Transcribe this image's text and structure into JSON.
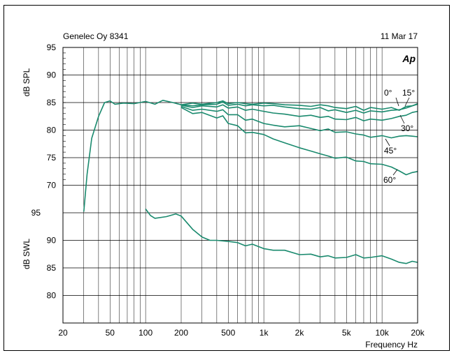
{
  "header": {
    "device": "Genelec Oy 8341",
    "date": "11 Mar 17",
    "logo": "Ap"
  },
  "chart_data": [
    {
      "type": "line",
      "name_axis": "dB SPL",
      "ylabel": "dB SPL",
      "xlabel": "Frequency Hz",
      "x_scale": "log",
      "xlim": [
        20,
        20000
      ],
      "ylim": [
        65,
        95
      ],
      "yticks": [
        70,
        75,
        80,
        85,
        90,
        95
      ],
      "color": "#1a8a6e",
      "series": [
        {
          "name": "0°",
          "points": [
            [
              30,
              65.2
            ],
            [
              32,
              72
            ],
            [
              35,
              78.5
            ],
            [
              40,
              82.5
            ],
            [
              45,
              85
            ],
            [
              50,
              85.3
            ],
            [
              55,
              84.7
            ],
            [
              65,
              84.9
            ],
            [
              80,
              84.8
            ],
            [
              100,
              85.2
            ],
            [
              120,
              84.7
            ],
            [
              140,
              85.4
            ],
            [
              170,
              85
            ],
            [
              200,
              84.6
            ],
            [
              250,
              84.9
            ],
            [
              300,
              84.7
            ],
            [
              400,
              85
            ],
            [
              450,
              85.3
            ],
            [
              500,
              84.8
            ],
            [
              600,
              85
            ],
            [
              700,
              84.8
            ],
            [
              800,
              84.7
            ],
            [
              1000,
              84.9
            ],
            [
              1200,
              84.8
            ],
            [
              1500,
              84.6
            ],
            [
              2000,
              84.5
            ],
            [
              2500,
              84.3
            ],
            [
              3000,
              84.6
            ],
            [
              3500,
              84.4
            ],
            [
              4000,
              84.1
            ],
            [
              5000,
              83.9
            ],
            [
              6000,
              84.3
            ],
            [
              7000,
              83.6
            ],
            [
              8000,
              84.1
            ],
            [
              10000,
              83.8
            ],
            [
              12000,
              84.1
            ],
            [
              14000,
              83.6
            ],
            [
              16000,
              84.3
            ],
            [
              18000,
              84.4
            ],
            [
              20000,
              84.8
            ]
          ]
        },
        {
          "name": "15°",
          "points": [
            [
              200,
              84.6
            ],
            [
              250,
              84.4
            ],
            [
              300,
              84.6
            ],
            [
              400,
              84.7
            ],
            [
              450,
              85.1
            ],
            [
              500,
              84.5
            ],
            [
              600,
              84.7
            ],
            [
              700,
              84.4
            ],
            [
              800,
              84.6
            ],
            [
              1000,
              84.4
            ],
            [
              1200,
              84.5
            ],
            [
              1500,
              84.2
            ],
            [
              2000,
              83.9
            ],
            [
              2500,
              83.8
            ],
            [
              3000,
              84.1
            ],
            [
              3500,
              83.5
            ],
            [
              4000,
              83.7
            ],
            [
              5000,
              83.2
            ],
            [
              6000,
              83.6
            ],
            [
              7000,
              83.1
            ],
            [
              8000,
              83.5
            ],
            [
              10000,
              83.3
            ],
            [
              12000,
              83.6
            ],
            [
              14000,
              83.7
            ],
            [
              16000,
              84
            ],
            [
              18000,
              84.4
            ],
            [
              20000,
              84.7
            ]
          ]
        },
        {
          "name": "30°",
          "points": [
            [
              200,
              84.5
            ],
            [
              250,
              84.1
            ],
            [
              300,
              84.4
            ],
            [
              400,
              84.2
            ],
            [
              450,
              84.6
            ],
            [
              500,
              84
            ],
            [
              600,
              84.2
            ],
            [
              700,
              83.6
            ],
            [
              800,
              83.8
            ],
            [
              1000,
              83.4
            ],
            [
              1200,
              83.1
            ],
            [
              1500,
              82.9
            ],
            [
              2000,
              82.5
            ],
            [
              2500,
              82.7
            ],
            [
              3000,
              82.3
            ],
            [
              3500,
              82.5
            ],
            [
              4000,
              82
            ],
            [
              5000,
              81.9
            ],
            [
              6000,
              82.3
            ],
            [
              7000,
              81.7
            ],
            [
              8000,
              82
            ],
            [
              10000,
              81.8
            ],
            [
              12000,
              82.1
            ],
            [
              14000,
              82.5
            ],
            [
              16000,
              82.7
            ],
            [
              18000,
              83.2
            ],
            [
              20000,
              83.4
            ]
          ]
        },
        {
          "name": "45°",
          "points": [
            [
              200,
              84.3
            ],
            [
              250,
              83.6
            ],
            [
              300,
              83.8
            ],
            [
              400,
              83.4
            ],
            [
              450,
              83.7
            ],
            [
              500,
              82.8
            ],
            [
              600,
              82.8
            ],
            [
              700,
              81.8
            ],
            [
              800,
              82
            ],
            [
              1000,
              81.2
            ],
            [
              1200,
              80.9
            ],
            [
              1500,
              80.6
            ],
            [
              2000,
              80.8
            ],
            [
              2500,
              80.3
            ],
            [
              3000,
              79.9
            ],
            [
              3500,
              80.2
            ],
            [
              4000,
              79.6
            ],
            [
              5000,
              79.7
            ],
            [
              6000,
              79.3
            ],
            [
              7000,
              79.1
            ],
            [
              8000,
              78.7
            ],
            [
              10000,
              79
            ],
            [
              12000,
              78.6
            ],
            [
              14000,
              78.9
            ],
            [
              16000,
              79
            ],
            [
              18000,
              78.9
            ],
            [
              20000,
              78.8
            ]
          ]
        },
        {
          "name": "60°",
          "points": [
            [
              200,
              84.1
            ],
            [
              250,
              83
            ],
            [
              300,
              83.2
            ],
            [
              400,
              82.2
            ],
            [
              450,
              82.6
            ],
            [
              500,
              81.2
            ],
            [
              600,
              80.8
            ],
            [
              700,
              79.5
            ],
            [
              800,
              79.6
            ],
            [
              1000,
              79.2
            ],
            [
              1200,
              78.4
            ],
            [
              1500,
              77.7
            ],
            [
              2000,
              76.8
            ],
            [
              2500,
              76.2
            ],
            [
              3000,
              75.7
            ],
            [
              3500,
              75.3
            ],
            [
              4000,
              74.9
            ],
            [
              5000,
              75.1
            ],
            [
              6000,
              74.4
            ],
            [
              7000,
              74.3
            ],
            [
              8000,
              73.9
            ],
            [
              10000,
              73.8
            ],
            [
              12000,
              73.3
            ],
            [
              14000,
              72.6
            ],
            [
              16000,
              71.9
            ],
            [
              18000,
              72.3
            ],
            [
              20000,
              72.5
            ]
          ]
        }
      ],
      "series_labels": [
        "0°",
        "15°",
        "30°",
        "45°",
        "60°"
      ]
    },
    {
      "type": "line",
      "ylabel": "dB SWL",
      "x_scale": "log",
      "xlim": [
        20,
        20000
      ],
      "ylim": [
        75,
        95
      ],
      "yticks": [
        80,
        85,
        90,
        95
      ],
      "color": "#1a8a6e",
      "series": [
        {
          "name": "",
          "points": [
            [
              100,
              95.7
            ],
            [
              110,
              94.5
            ],
            [
              120,
              94
            ],
            [
              150,
              94.3
            ],
            [
              180,
              94.8
            ],
            [
              200,
              94.4
            ],
            [
              250,
              92
            ],
            [
              300,
              90.6
            ],
            [
              350,
              90
            ],
            [
              400,
              90
            ],
            [
              500,
              89.8
            ],
            [
              600,
              89.6
            ],
            [
              700,
              89
            ],
            [
              800,
              89.3
            ],
            [
              1000,
              88.5
            ],
            [
              1200,
              88.2
            ],
            [
              1500,
              88.2
            ],
            [
              2000,
              87.4
            ],
            [
              2500,
              87.5
            ],
            [
              3000,
              87
            ],
            [
              3500,
              87.2
            ],
            [
              4000,
              86.8
            ],
            [
              5000,
              86.9
            ],
            [
              6000,
              87.4
            ],
            [
              7000,
              86.8
            ],
            [
              8000,
              86.9
            ],
            [
              10000,
              87.2
            ],
            [
              12000,
              86.6
            ],
            [
              14000,
              86
            ],
            [
              16000,
              85.8
            ],
            [
              18000,
              86.2
            ],
            [
              20000,
              86
            ]
          ]
        }
      ]
    }
  ],
  "xticks": [
    {
      "v": 20,
      "label": "20"
    },
    {
      "v": 50,
      "label": "50"
    },
    {
      "v": 100,
      "label": "100"
    },
    {
      "v": 200,
      "label": "200"
    },
    {
      "v": 500,
      "label": "500"
    },
    {
      "v": 1000,
      "label": "1k"
    },
    {
      "v": 2000,
      "label": "2k"
    },
    {
      "v": 5000,
      "label": "5k"
    },
    {
      "v": 10000,
      "label": "10k"
    },
    {
      "v": 20000,
      "label": "20k"
    }
  ]
}
